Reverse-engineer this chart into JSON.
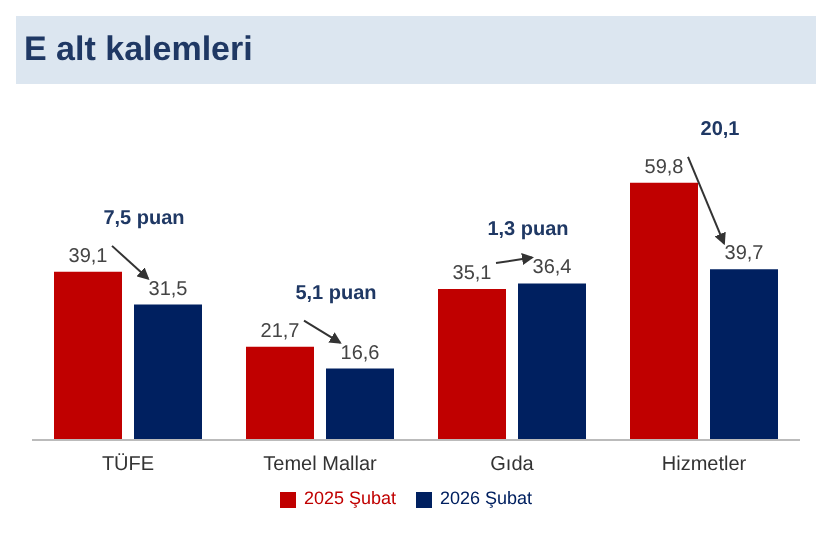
{
  "chart_data": {
    "type": "bar",
    "title": "E alt kalemleri",
    "categories": [
      "TÜFE",
      "Temel Mallar",
      "Gıda",
      "Hizmetler"
    ],
    "series": [
      {
        "name": "2025 Şubat",
        "color": "#c00000",
        "values": [
          39.1,
          21.7,
          35.1,
          59.8
        ],
        "value_labels": [
          "39,1",
          "21,7",
          "35,1",
          "59,8"
        ]
      },
      {
        "name": "2026 Şubat",
        "color": "#002060",
        "values": [
          31.5,
          16.6,
          36.4,
          39.7
        ],
        "value_labels": [
          "31,5",
          "16,6",
          "36,4",
          "39,7"
        ]
      }
    ],
    "legend": "bottom",
    "grid": false,
    "annotations": [
      {
        "text": "7,5 puan",
        "x": "TÜFE",
        "y": 39.1
      },
      {
        "text": "5,1 puan",
        "x": "Temel Mallar",
        "y": 21.7
      },
      {
        "text": "1,3 puan",
        "x": "Gıda",
        "y": 36.4
      },
      {
        "text": "20,1",
        "x": "Hizmetler",
        "y": 59.8
      }
    ]
  }
}
